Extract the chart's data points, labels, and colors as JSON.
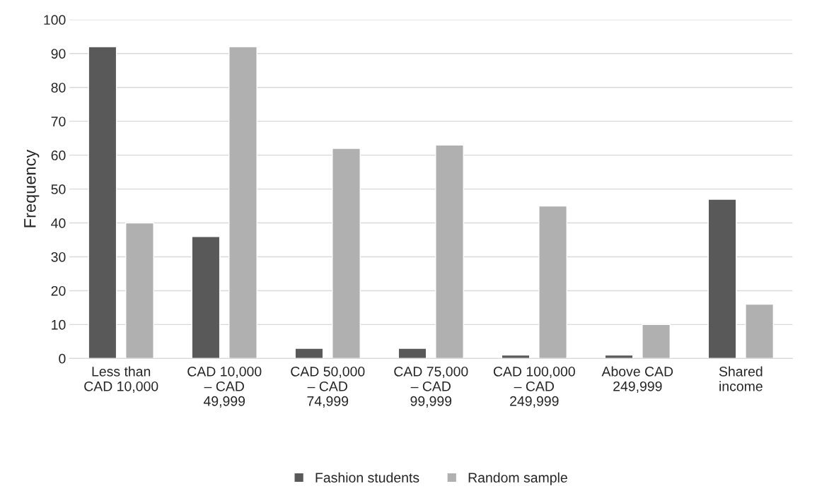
{
  "chart_data": {
    "type": "bar",
    "ylabel": "Frequency",
    "categories": [
      "Less than CAD 10,000",
      "CAD 10,000 – CAD 49,999",
      "CAD 50,000 – CAD 74,999",
      "CAD 75,000 – CAD 99,999",
      "CAD 100,000 – CAD 249,999",
      "Above CAD 249,999",
      "Shared income"
    ],
    "series": [
      {
        "name": "Fashion students",
        "color": "#595959",
        "values": [
          92,
          36,
          3,
          3,
          1,
          1,
          47
        ]
      },
      {
        "name": "Random sample",
        "color": "#b0b0b0",
        "values": [
          40,
          92,
          62,
          63,
          45,
          10,
          16
        ]
      }
    ],
    "ylim": [
      0,
      100
    ],
    "yticks": [
      0,
      10,
      20,
      30,
      40,
      50,
      60,
      70,
      80,
      90,
      100
    ],
    "grid": "y",
    "legend": "bottom"
  }
}
